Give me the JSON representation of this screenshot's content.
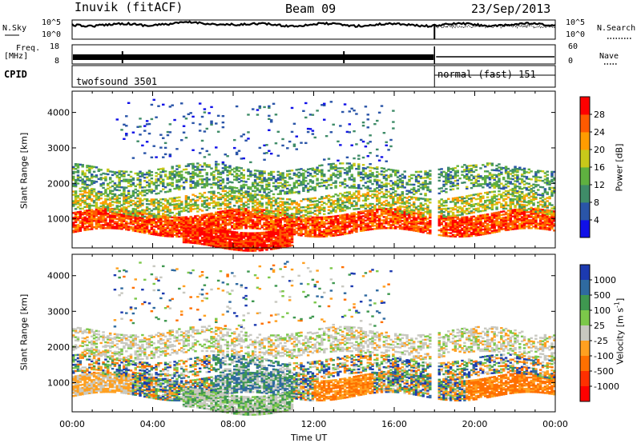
{
  "header": {
    "station": "Inuvik (fitACF)",
    "beam": "Beam 09",
    "date": "23/Sep/2013"
  },
  "summary": {
    "nsky_label": "N.Sky",
    "nsearch_label": "N.Search",
    "freq_label_1": "Freq.",
    "freq_label_2": "[MHz]",
    "cpid_label": "CPID",
    "nave_label": "Nave",
    "noise_ticks_left": [
      "10^5",
      "10^0"
    ],
    "noise_ticks_right": [
      "10^5",
      "10^0"
    ],
    "freq_ticks": [
      "18",
      "8"
    ],
    "nave_ticks": [
      "60",
      "0"
    ],
    "cpid_segments": [
      {
        "name": "twofsound",
        "id": "3501",
        "label": "twofsound 3501",
        "start_hour": 0,
        "end_hour": 18.0
      },
      {
        "name": "normal (fast)",
        "id": "151",
        "label": "normal (fast) 151",
        "start_hour": 18.0,
        "end_hour": 24
      }
    ]
  },
  "chart_data": [
    {
      "type": "heatmap",
      "name": "power",
      "ylabel": "Slant Range [km]",
      "xlabel": "",
      "xlim": [
        0,
        24
      ],
      "ylim": [
        180,
        4600
      ],
      "yticks": [
        1000,
        2000,
        3000,
        4000
      ],
      "colorbar": {
        "label": "Power [dB]",
        "ticks": [
          "4",
          "8",
          "12",
          "16",
          "20",
          "24",
          "28"
        ],
        "colors": [
          "#1010e8",
          "#2a55a8",
          "#3f8c68",
          "#5fb040",
          "#c8c81a",
          "#ff9c00",
          "#ff5a00",
          "#ff0000"
        ]
      }
    },
    {
      "type": "heatmap",
      "name": "velocity",
      "ylabel": "Slant Range [km]",
      "xlabel": "Time UT",
      "xlim": [
        0,
        24
      ],
      "ylim": [
        180,
        4600
      ],
      "yticks": [
        1000,
        2000,
        3000,
        4000
      ],
      "xticklabels": [
        "00:00",
        "04:00",
        "08:00",
        "12:00",
        "16:00",
        "20:00",
        "00:00"
      ],
      "colorbar": {
        "label": "Velocity [m s",
        "label_sup": "-1",
        "label_end": "]",
        "ticks": [
          "1000",
          "500",
          "100",
          "25",
          "-25",
          "-100",
          "-500",
          "-1000"
        ],
        "colors": [
          "#1c3ab0",
          "#2f6aa0",
          "#3f9850",
          "#7cc84a",
          "#c8c8c0",
          "#ffa020",
          "#ff7000",
          "#ff3000",
          "#ff0000"
        ]
      }
    }
  ]
}
